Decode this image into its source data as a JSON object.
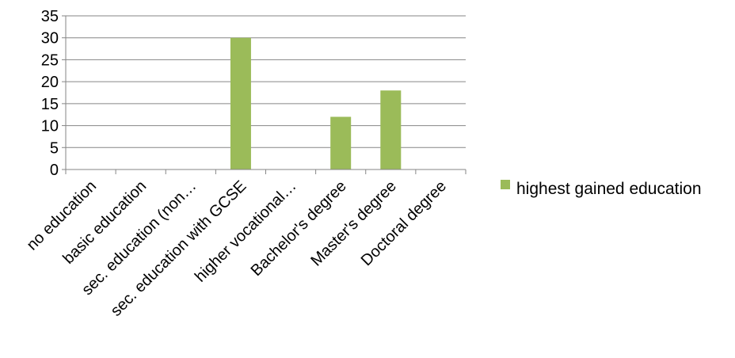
{
  "chart_data": {
    "type": "bar",
    "title": "",
    "xlabel": "",
    "ylabel": "",
    "categories": [
      "no education",
      "basic education",
      "sec. education (non…",
      "sec. education with GCSE",
      "higher vocational…",
      "Bachelor's degree",
      "Master's degree",
      "Doctoral degree"
    ],
    "series": [
      {
        "name": "highest gained education",
        "values": [
          0,
          0,
          0,
          30,
          0,
          12,
          18,
          0
        ]
      }
    ],
    "ylim": [
      0,
      35
    ],
    "yticks": [
      "0",
      "5",
      "10",
      "15",
      "20",
      "25",
      "30",
      "35"
    ],
    "grid": true,
    "legend_position": "right",
    "colors": {
      "bar": "#9BBB59",
      "grid": "#868686",
      "axis": "#868686"
    }
  }
}
